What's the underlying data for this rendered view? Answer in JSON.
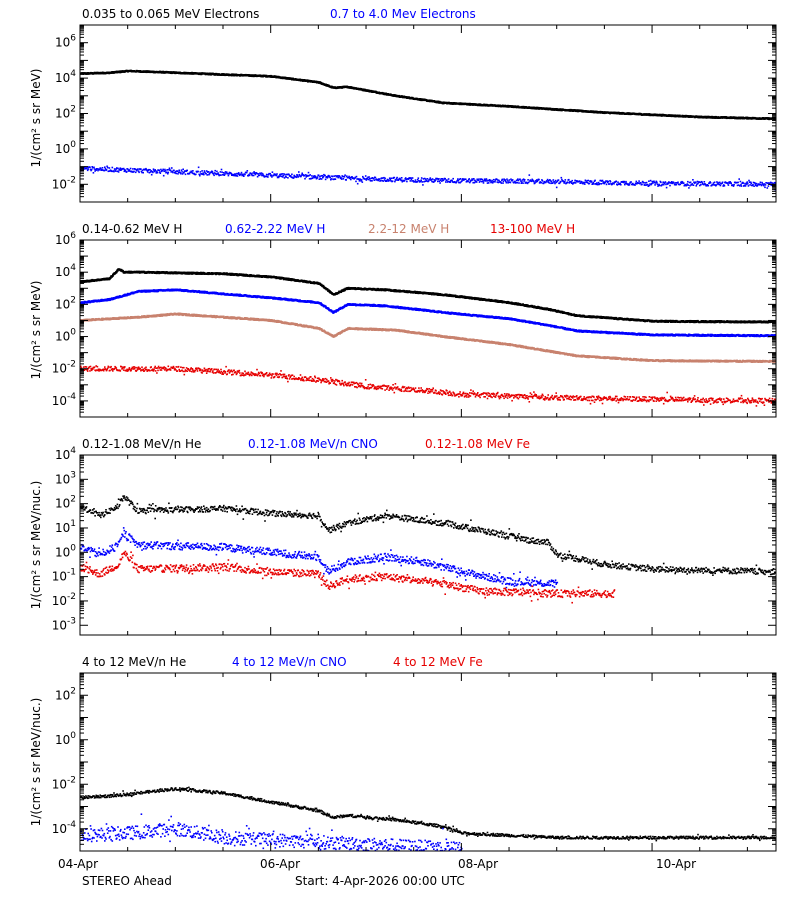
{
  "footer": {
    "spacecraft": "STEREO Ahead",
    "start": "Start:  4-Apr-2026 00:00 UTC"
  },
  "x_axis": {
    "range_days": [
      0,
      7.3
    ],
    "ticks": [
      {
        "day": 0,
        "label": "04-Apr"
      },
      {
        "day": 2,
        "label": "06-Apr"
      },
      {
        "day": 4,
        "label": "08-Apr"
      },
      {
        "day": 6,
        "label": "10-Apr"
      }
    ]
  },
  "colors": {
    "black": "#000000",
    "blue": "#0000ff",
    "tan": "#c8826e",
    "red": "#e60000"
  },
  "chart_data": [
    {
      "type": "scatter",
      "ylabel": "1/(cm² s sr MeV)",
      "ylog_range": [
        -3,
        7
      ],
      "yticks": [
        {
          "exp": "-2"
        },
        {
          "exp": "0"
        },
        {
          "exp": "2"
        },
        {
          "exp": "4"
        },
        {
          "exp": "6"
        }
      ],
      "series": [
        {
          "name": "0.035 to 0.065 MeV Electrons",
          "color": "black",
          "x": [
            0,
            0.3,
            0.5,
            1.0,
            2.0,
            2.5,
            2.65,
            2.8,
            3.3,
            3.8,
            4.5,
            5.5,
            6.5,
            7.3
          ],
          "log_y": [
            4.25,
            4.3,
            4.4,
            4.3,
            4.1,
            3.75,
            3.45,
            3.5,
            3.0,
            2.6,
            2.4,
            2.05,
            1.8,
            1.7
          ],
          "scatter": 0.03,
          "style": "line"
        },
        {
          "name": "0.7 to 4.0 Mev Electrons",
          "color": "blue",
          "x": [
            0,
            1.0,
            2.0,
            3.0,
            4.0,
            5.0,
            6.0,
            7.3
          ],
          "log_y": [
            -1.1,
            -1.3,
            -1.5,
            -1.7,
            -1.8,
            -1.85,
            -1.95,
            -2.0
          ],
          "scatter": 0.12,
          "style": "dots"
        }
      ]
    },
    {
      "type": "scatter",
      "ylabel": "1/(cm² s sr MeV)",
      "ylog_range": [
        -5,
        6
      ],
      "yticks": [
        {
          "exp": "-4"
        },
        {
          "exp": "-2"
        },
        {
          "exp": "0"
        },
        {
          "exp": "2"
        },
        {
          "exp": "4"
        },
        {
          "exp": "6"
        }
      ],
      "series": [
        {
          "name": "0.14-0.62 MeV H",
          "color": "black",
          "x": [
            0,
            0.3,
            0.4,
            0.45,
            0.6,
            1.5,
            2.0,
            2.5,
            2.65,
            2.8,
            3.2,
            3.8,
            4.5,
            4.9,
            5.2,
            6.0,
            7.3
          ],
          "log_y": [
            3.4,
            3.6,
            4.2,
            4.0,
            4.0,
            3.9,
            3.7,
            3.3,
            2.6,
            3.0,
            2.9,
            2.6,
            2.1,
            1.7,
            1.3,
            0.95,
            0.9
          ],
          "scatter": 0.04,
          "style": "line"
        },
        {
          "name": "0.62-2.22 MeV H",
          "color": "blue",
          "x": [
            0,
            0.3,
            0.6,
            1.0,
            2.0,
            2.5,
            2.65,
            2.8,
            3.2,
            3.8,
            4.5,
            4.9,
            5.2,
            6.0,
            7.3
          ],
          "log_y": [
            2.1,
            2.3,
            2.8,
            2.9,
            2.4,
            2.1,
            1.5,
            2.0,
            1.9,
            1.5,
            1.1,
            0.7,
            0.35,
            0.1,
            0.05
          ],
          "scatter": 0.04,
          "style": "line"
        },
        {
          "name": "2.2-12 MeV H",
          "color": "tan",
          "x": [
            0,
            0.6,
            1.0,
            2.0,
            2.5,
            2.65,
            2.8,
            3.3,
            3.8,
            4.5,
            4.9,
            5.2,
            6.0,
            7.3
          ],
          "log_y": [
            1.0,
            1.2,
            1.4,
            1.0,
            0.5,
            0.0,
            0.5,
            0.4,
            0.0,
            -0.5,
            -0.9,
            -1.2,
            -1.5,
            -1.55
          ],
          "scatter": 0.04,
          "style": "line"
        },
        {
          "name": "13-100 MeV H",
          "color": "red",
          "x": [
            0,
            1.0,
            2.0,
            2.5,
            3.0,
            3.5,
            4.0,
            5.0,
            6.0,
            7.3
          ],
          "log_y": [
            -2.0,
            -2.0,
            -2.4,
            -2.7,
            -3.1,
            -3.3,
            -3.6,
            -3.8,
            -3.9,
            -4.0
          ],
          "scatter": 0.15,
          "style": "dots"
        }
      ]
    },
    {
      "type": "scatter",
      "ylabel": "1/(cm² s sr MeV/nuc.)",
      "ylog_range": [
        -3.4,
        4
      ],
      "yticks": [
        {
          "exp": "-3"
        },
        {
          "exp": "-2"
        },
        {
          "exp": "-1"
        },
        {
          "exp": "0",
          "label": "10⁰"
        },
        {
          "exp": "1"
        },
        {
          "exp": "2"
        },
        {
          "exp": "3"
        },
        {
          "exp": "4"
        }
      ],
      "series": [
        {
          "name": "0.12-1.08 MeV/n He",
          "color": "black",
          "x": [
            0,
            0.2,
            0.4,
            0.45,
            0.6,
            1.5,
            2.0,
            2.5,
            2.6,
            2.8,
            3.2,
            3.8,
            4.2,
            4.7,
            4.9,
            5.0,
            5.5,
            6.0,
            7.3
          ],
          "log_y": [
            1.9,
            1.5,
            1.9,
            2.3,
            1.7,
            1.8,
            1.6,
            1.5,
            0.9,
            1.2,
            1.5,
            1.2,
            0.9,
            0.5,
            0.4,
            -0.1,
            -0.5,
            -0.7,
            -0.8
          ],
          "scatter": 0.12,
          "style": "dots"
        },
        {
          "name": "0.12-1.08 MeV/n CNO",
          "color": "blue",
          "x": [
            0,
            0.2,
            0.4,
            0.45,
            0.6,
            1.5,
            2.0,
            2.5,
            2.6,
            2.8,
            3.2,
            3.6,
            4.0,
            4.5,
            5.0
          ],
          "log_y": [
            0.2,
            -0.1,
            0.3,
            0.8,
            0.3,
            0.2,
            0.0,
            -0.2,
            -0.8,
            -0.4,
            -0.2,
            -0.4,
            -0.8,
            -1.2,
            -1.3
          ],
          "scatter": 0.15,
          "style": "dots"
        },
        {
          "name": "0.12-1.08 MeV Fe",
          "color": "red",
          "x": [
            0,
            0.2,
            0.4,
            0.45,
            0.6,
            1.5,
            2.0,
            2.5,
            2.6,
            2.8,
            3.2,
            3.8,
            4.2,
            5.0,
            5.6
          ],
          "log_y": [
            -0.6,
            -0.9,
            -0.5,
            0.0,
            -0.7,
            -0.6,
            -0.8,
            -0.9,
            -1.4,
            -1.1,
            -1.0,
            -1.3,
            -1.6,
            -1.7,
            -1.7
          ],
          "scatter": 0.15,
          "style": "dots"
        }
      ]
    },
    {
      "type": "scatter",
      "ylabel": "1/(cm² s sr MeV/nuc.)",
      "ylog_range": [
        -5,
        3
      ],
      "yticks": [
        {
          "exp": "-4"
        },
        {
          "exp": "-2"
        },
        {
          "exp": "0"
        },
        {
          "exp": "2"
        }
      ],
      "series": [
        {
          "name": "4 to 12 MeV/n He",
          "color": "black",
          "x": [
            0,
            0.4,
            1.0,
            1.5,
            2.0,
            2.5,
            2.65,
            2.8,
            3.3,
            3.8,
            4.0,
            4.5,
            5.0,
            6.0,
            7.3
          ],
          "log_y": [
            -2.6,
            -2.5,
            -2.2,
            -2.4,
            -2.8,
            -3.2,
            -3.5,
            -3.4,
            -3.6,
            -3.9,
            -4.2,
            -4.3,
            -4.4,
            -4.4,
            -4.4
          ],
          "scatter": 0.06,
          "style": "dots"
        },
        {
          "name": "4 to 12 MeV/n CNO",
          "color": "blue",
          "x": [
            0,
            0.5,
            1.0,
            1.5,
            2.0,
            2.5,
            3.0,
            3.5,
            4.0
          ],
          "log_y": [
            -4.3,
            -4.2,
            -4.0,
            -4.4,
            -4.5,
            -4.6,
            -4.7,
            -4.8,
            -4.9
          ],
          "scatter": 0.3,
          "style": "dots"
        },
        {
          "name": "4 to 12 MeV Fe",
          "color": "red",
          "x": [],
          "log_y": [],
          "scatter": 0.2,
          "style": "dots"
        }
      ]
    }
  ]
}
